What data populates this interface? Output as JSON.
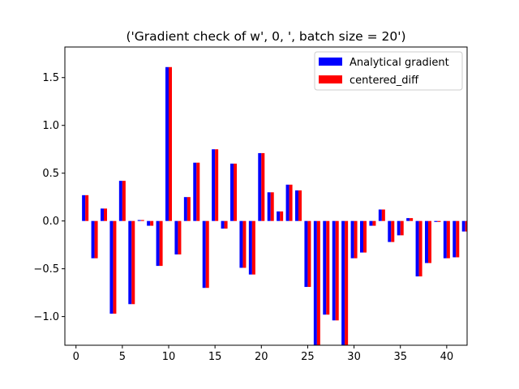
{
  "chart_data": {
    "type": "bar",
    "title": "('Gradient check of w', 0, ', batch size = 20')",
    "xlabel": "",
    "ylabel": "",
    "xlim": [
      -1.2,
      42.2
    ],
    "ylim": [
      -1.3,
      1.82
    ],
    "xticks": [
      0,
      5,
      10,
      15,
      20,
      25,
      30,
      35,
      40
    ],
    "yticks": [
      -1.0,
      -0.5,
      0.0,
      0.5,
      1.0,
      1.5
    ],
    "ytick_labels": [
      "−1.0",
      "−0.5",
      "0.0",
      "0.5",
      "1.0",
      "1.5"
    ],
    "legend_position": "top-right",
    "x": [
      1,
      2,
      3,
      4,
      5,
      6,
      7,
      8,
      9,
      10,
      11,
      12,
      13,
      14,
      15,
      16,
      17,
      18,
      19,
      20,
      21,
      22,
      23,
      24,
      25,
      26,
      27,
      28,
      29,
      30,
      31,
      32,
      33,
      34,
      35,
      36,
      37,
      38,
      39,
      40,
      41,
      42
    ],
    "series": [
      {
        "name": "Analytical gradient",
        "color": "#0000ff",
        "values": [
          0.27,
          -0.39,
          0.13,
          -0.97,
          0.42,
          -0.87,
          0.01,
          -0.05,
          -0.47,
          1.61,
          -0.35,
          0.25,
          0.61,
          -0.7,
          0.75,
          -0.08,
          0.6,
          -0.49,
          -0.56,
          0.71,
          0.3,
          0.1,
          0.38,
          0.32,
          -0.69,
          -1.4,
          -0.98,
          -1.04,
          -1.4,
          -0.39,
          -0.33,
          -0.05,
          0.12,
          -0.22,
          -0.15,
          0.03,
          -0.58,
          -0.44,
          -0.01,
          -0.39,
          -0.38,
          -0.11
        ]
      },
      {
        "name": "centered_diff",
        "color": "#ff0000",
        "values": [
          0.27,
          -0.39,
          0.13,
          -0.97,
          0.42,
          -0.87,
          0.01,
          -0.05,
          -0.47,
          1.61,
          -0.35,
          0.25,
          0.61,
          -0.7,
          0.75,
          -0.08,
          0.6,
          -0.49,
          -0.56,
          0.71,
          0.3,
          0.1,
          0.38,
          0.32,
          -0.69,
          -1.4,
          -0.98,
          -1.04,
          -1.4,
          -0.39,
          -0.33,
          -0.05,
          0.12,
          -0.22,
          -0.15,
          0.03,
          -0.58,
          -0.44,
          -0.01,
          -0.39,
          -0.38,
          -0.11
        ]
      }
    ]
  }
}
